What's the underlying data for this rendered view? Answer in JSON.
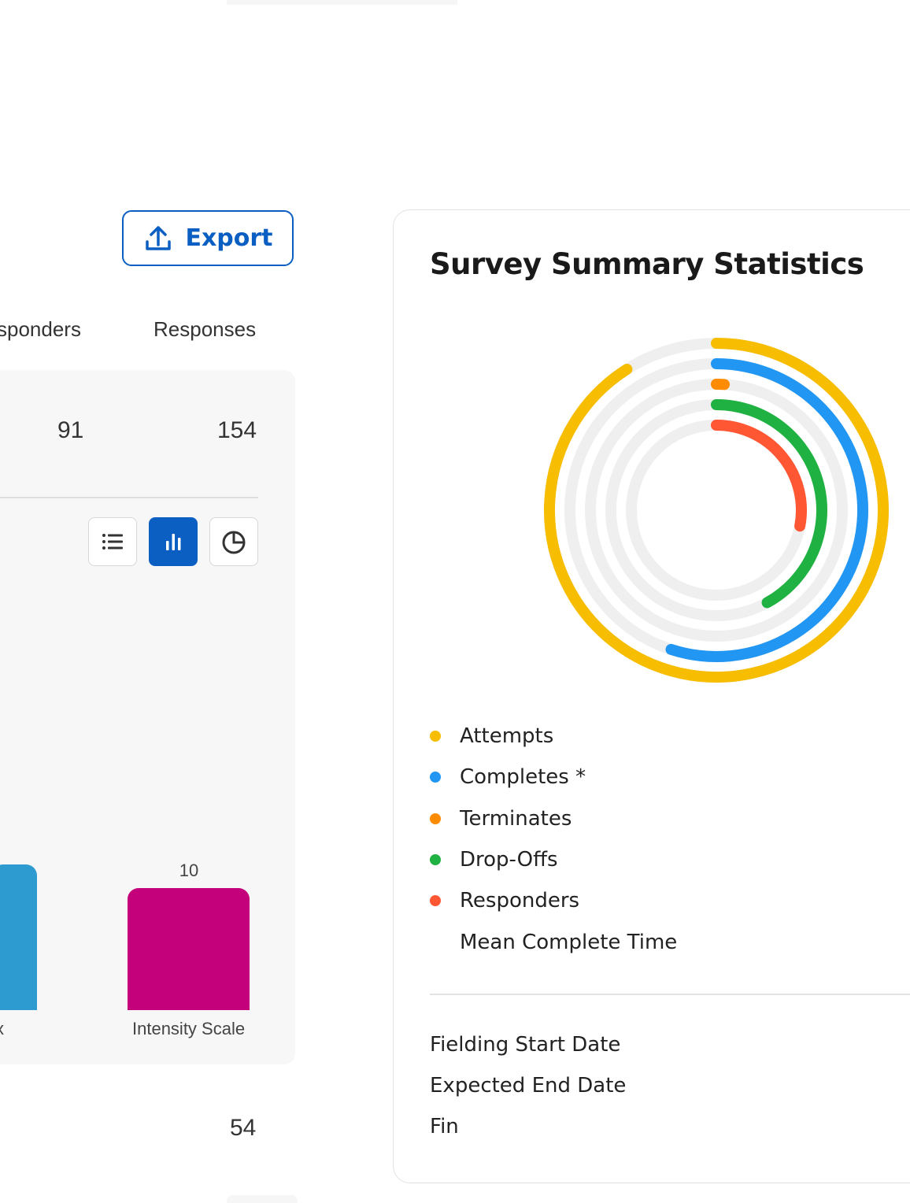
{
  "toolbar": {
    "export_label": "Export"
  },
  "table": {
    "headers": {
      "responders": "sponders",
      "responses": "Responses"
    },
    "values": {
      "responders": "91",
      "responses": "154"
    },
    "below_value": "54"
  },
  "view_toggle": {
    "options": [
      "list",
      "bar",
      "pie"
    ],
    "selected": "bar"
  },
  "bar_chart": {
    "bars": [
      {
        "label": "x",
        "value": null,
        "color": "#2e9bd0"
      },
      {
        "label": "Intensity Scale",
        "value": 10,
        "value_label": "10",
        "color": "#c4007a"
      }
    ]
  },
  "summary": {
    "title": "Survey Summary Statistics",
    "legend": [
      {
        "label": "Attempts",
        "color": "#f7bd00"
      },
      {
        "label": "Completes *",
        "color": "#2196f3"
      },
      {
        "label": "Terminates",
        "color": "#ff8c00"
      },
      {
        "label": "Drop-Offs",
        "color": "#1fb141"
      },
      {
        "label": "Responders",
        "color": "#ff5733"
      },
      {
        "label": "Mean Complete Time",
        "color": ""
      }
    ],
    "fielding_start_label": "Fielding Start Date",
    "expected_end_label": "Expected End Date",
    "fin_label": "Fin"
  },
  "chart_data": {
    "type": "radial-bar",
    "series": [
      {
        "name": "Attempts",
        "fraction": 0.91,
        "color": "#f7bd00"
      },
      {
        "name": "Completes *",
        "fraction": 0.55,
        "color": "#2196f3"
      },
      {
        "name": "Terminates",
        "fraction": 0.01,
        "color": "#ff8c00"
      },
      {
        "name": "Drop-Offs",
        "fraction": 0.42,
        "color": "#1fb141"
      },
      {
        "name": "Responders",
        "fraction": 0.28,
        "color": "#ff5733"
      }
    ]
  }
}
